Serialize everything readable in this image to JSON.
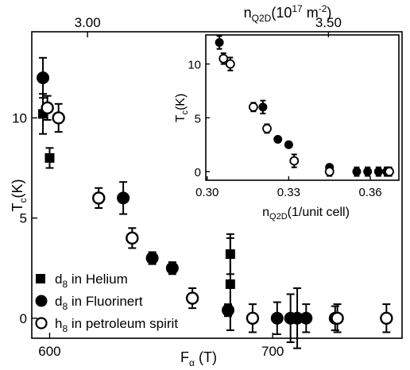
{
  "chart_data": [
    {
      "type": "scatter",
      "xlabel": {
        "main": "F",
        "sub": "α",
        "unit": " (T)"
      },
      "ylabel": {
        "main": "T",
        "sub": "c",
        "unit": "(K)"
      },
      "top_xlabel": {
        "main": "n",
        "sub": "Q2D",
        "unit_pre": "(10",
        "exp1": "17",
        "unit_mid": " m",
        "exp2": "-2",
        "unit_post": ")"
      },
      "xlim": [
        592,
        758
      ],
      "ylim": [
        -1,
        14.3
      ],
      "xticks": [
        {
          "value": 600,
          "label": "600"
        },
        {
          "value": 700,
          "label": "700"
        }
      ],
      "yticks": [
        {
          "value": 0,
          "label": "0"
        },
        {
          "value": 5,
          "label": "5"
        },
        {
          "value": 10,
          "label": "10"
        }
      ],
      "top_ticks": [
        {
          "value": 617,
          "label": "3.00"
        },
        {
          "value": 725,
          "label": "3.50"
        }
      ],
      "legend_position": "bottom-left",
      "series": [
        {
          "name": "d8 in Helium",
          "legend": {
            "sym": "d",
            "sub": "8",
            "text": " in Helium"
          },
          "marker": "square",
          "points": [
            {
              "x": 597,
              "y": 10.2,
              "err": 1.0
            },
            {
              "x": 600,
              "y": 8.0,
              "err": 0.5
            },
            {
              "x": 681,
              "y": 3.2,
              "err": 1.0
            },
            {
              "x": 681,
              "y": 1.7,
              "err": 2.3
            }
          ]
        },
        {
          "name": "d8 in Fluorinert",
          "legend": {
            "sym": "d",
            "sub": "8",
            "text": " in Fluorinert"
          },
          "marker": "filled-circle",
          "points": [
            {
              "x": 597,
              "y": 12.0,
              "err": 1.0
            },
            {
              "x": 633,
              "y": 6.0,
              "err": 0.8
            },
            {
              "x": 646,
              "y": 3.0,
              "err": 0.3
            },
            {
              "x": 655,
              "y": 2.5,
              "err": 0.3
            },
            {
              "x": 680,
              "y": 0.4,
              "err": 0.3
            },
            {
              "x": 702,
              "y": 0.0,
              "err": 0.8
            },
            {
              "x": 708,
              "y": 0.0,
              "err": 1.2
            },
            {
              "x": 711,
              "y": 0.0,
              "err": 1.5
            },
            {
              "x": 715,
              "y": 0.0,
              "err": 0.7
            },
            {
              "x": 728,
              "y": 0.0,
              "err": 0.6
            }
          ]
        },
        {
          "name": "h8 in petroleum spirit",
          "legend": {
            "sym": "h",
            "sub": "8",
            "text": " in petroleum spirit"
          },
          "marker": "open-circle",
          "points": [
            {
              "x": 599,
              "y": 10.5,
              "err": 0.6
            },
            {
              "x": 604,
              "y": 10.0,
              "err": 0.7
            },
            {
              "x": 622,
              "y": 6.0,
              "err": 0.5
            },
            {
              "x": 637,
              "y": 4.0,
              "err": 0.5
            },
            {
              "x": 664,
              "y": 1.0,
              "err": 0.5
            },
            {
              "x": 691,
              "y": 0.0,
              "err": 0.7
            },
            {
              "x": 729,
              "y": 0.0,
              "err": 0.7
            },
            {
              "x": 751,
              "y": 0.0,
              "err": 0.7
            }
          ]
        }
      ]
    },
    {
      "type": "scatter",
      "xlabel": {
        "main": "n",
        "sub": "Q2D",
        "unit": "(1/unit cell)"
      },
      "ylabel": {
        "main": "T",
        "sub": "c",
        "unit": "(K)"
      },
      "xlim": [
        0.2995,
        0.3705
      ],
      "ylim": [
        -0.8,
        12.7
      ],
      "xticks": [
        {
          "value": 0.3,
          "label": "0.30"
        },
        {
          "value": 0.33,
          "label": "0.33"
        },
        {
          "value": 0.36,
          "label": "0.36"
        }
      ],
      "yticks": [
        {
          "value": 0,
          "label": "0"
        },
        {
          "value": 5,
          "label": "5"
        },
        {
          "value": 10,
          "label": "10"
        }
      ],
      "series": [
        {
          "name": "d8 in Fluorinert",
          "marker": "filled-circle",
          "points": [
            {
              "x": 0.3045,
              "y": 12.0,
              "err": 0.6
            },
            {
              "x": 0.3205,
              "y": 6.0,
              "err": 0.6
            },
            {
              "x": 0.326,
              "y": 3.0,
              "err": 0.2
            },
            {
              "x": 0.33,
              "y": 2.5,
              "err": 0.2
            },
            {
              "x": 0.345,
              "y": 0.4,
              "err": 0.2
            },
            {
              "x": 0.355,
              "y": 0.0,
              "err": 0.4
            },
            {
              "x": 0.359,
              "y": 0.0,
              "err": 0.4
            },
            {
              "x": 0.363,
              "y": 0.0,
              "err": 0.4
            },
            {
              "x": 0.366,
              "y": 0.0,
              "err": 0.4
            }
          ]
        },
        {
          "name": "h8 in petroleum spirit",
          "marker": "open-circle",
          "points": [
            {
              "x": 0.306,
              "y": 10.5,
              "err": 0.5
            },
            {
              "x": 0.3085,
              "y": 10.0,
              "err": 0.6
            },
            {
              "x": 0.317,
              "y": 6.0,
              "err": 0.4
            },
            {
              "x": 0.322,
              "y": 4.0,
              "err": 0.4
            },
            {
              "x": 0.332,
              "y": 1.0,
              "err": 0.6
            },
            {
              "x": 0.345,
              "y": 0.0,
              "err": 0.4
            },
            {
              "x": 0.367,
              "y": 0.0,
              "err": 0.4
            }
          ]
        }
      ]
    }
  ]
}
